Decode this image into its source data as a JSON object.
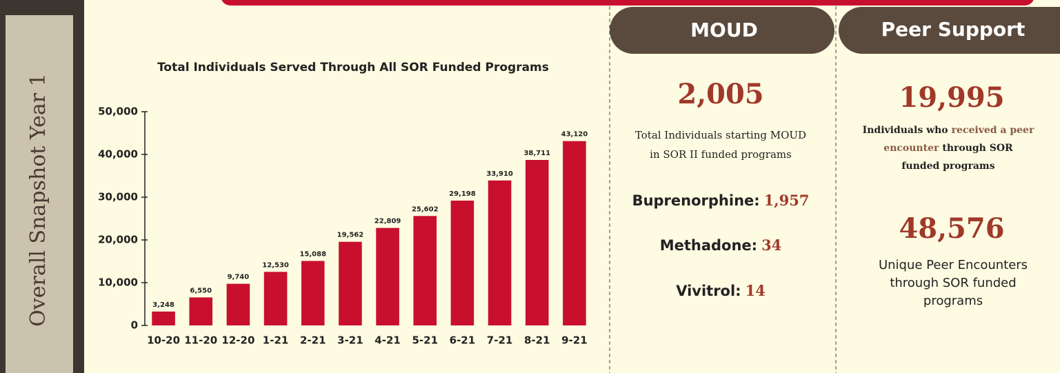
{
  "chart_data": {
    "type": "bar",
    "title": "Total Individuals Served Through All SOR Funded Programs",
    "categories": [
      "10-20",
      "11-20",
      "12-20",
      "1-21",
      "2-21",
      "3-21",
      "4-21",
      "5-21",
      "6-21",
      "7-21",
      "8-21",
      "9-21"
    ],
    "values": [
      3248,
      6550,
      9740,
      12530,
      15088,
      19562,
      22809,
      25602,
      29198,
      33910,
      38711,
      43120
    ],
    "value_labels": [
      "3,248",
      "6,550",
      "9,740",
      "12,530",
      "15,088",
      "19,562",
      "22,809",
      "25,602",
      "29,198",
      "33,910",
      "38,711",
      "43,120"
    ],
    "color": "#c8102e",
    "ylim": [
      0,
      50000
    ],
    "yticks": [
      0,
      {
        "value": 10000,
        "label": "10,000"
      },
      {
        "value": 20000,
        "label": "20,000"
      },
      {
        "value": 30000,
        "label": "30,000"
      },
      {
        "value": 40000,
        "label": "40,000"
      },
      {
        "value": 50000,
        "label": "50,000"
      }
    ],
    "grid": false
  },
  "sidebar": {
    "title": "Overall Snapshot Year 1"
  },
  "moud": {
    "header": "MOUD",
    "total": "2,005",
    "description": [
      "Total Individuals starting MOUD",
      "in SOR II funded programs"
    ],
    "items": [
      {
        "label": "Buprenorphine:",
        "value": "1,957"
      },
      {
        "label": "Methadone:",
        "value": "34"
      },
      {
        "label": "Vivitrol:",
        "value": "14"
      }
    ]
  },
  "peer_support": {
    "header": "Peer Support",
    "stat1": {
      "value": "19,995",
      "lines": [
        [
          "Individuals who",
          "received a peer"
        ],
        [
          "encounter",
          "through SOR"
        ],
        [
          "funded programs"
        ]
      ]
    },
    "stat2": {
      "value": "48,576",
      "description": [
        "Unique Peer Encounters",
        "through SOR funded",
        "programs"
      ]
    }
  }
}
